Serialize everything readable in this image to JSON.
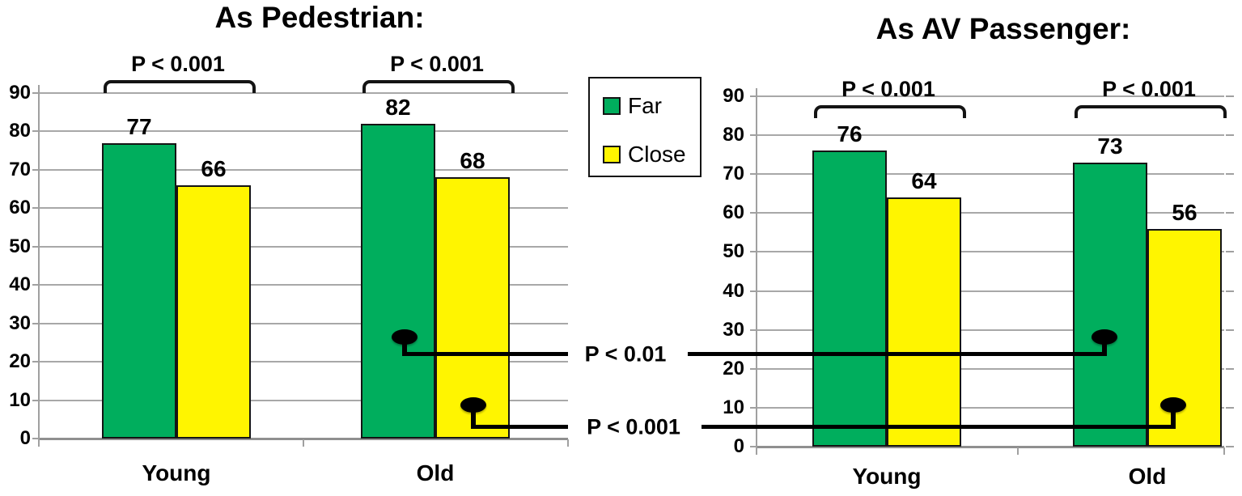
{
  "figure": {
    "background": "#ffffff",
    "description_colors": {
      "far_green": "#00AE5D",
      "close_yellow": "#FFF500",
      "gridline_gray": "#a8a8a8",
      "annotation_black": "#000000"
    }
  },
  "legend": {
    "items": [
      {
        "label": "Far",
        "color": "#00AE5D"
      },
      {
        "label": "Close",
        "color": "#FFF500"
      }
    ]
  },
  "chart_data": [
    {
      "type": "bar",
      "title": "As Pedestrian:",
      "categories": [
        "Young",
        "Old"
      ],
      "series": [
        {
          "name": "Far",
          "color": "#00AE5D",
          "values": [
            77,
            82
          ]
        },
        {
          "name": "Close",
          "color": "#FFF500",
          "values": [
            66,
            68
          ]
        }
      ],
      "ylim": [
        0,
        90
      ],
      "yticks": [
        0,
        10,
        20,
        30,
        40,
        50,
        60,
        70,
        80,
        90
      ],
      "grid": true,
      "xlabel": "",
      "ylabel": "",
      "significance_brackets": [
        {
          "category": "Young",
          "label": "P < 0.001"
        },
        {
          "category": "Old",
          "label": "P < 0.001"
        }
      ]
    },
    {
      "type": "bar",
      "title": "As AV Passenger:",
      "categories": [
        "Young",
        "Old"
      ],
      "series": [
        {
          "name": "Far",
          "color": "#00AE5D",
          "values": [
            76,
            73
          ]
        },
        {
          "name": "Close",
          "color": "#FFF500",
          "values": [
            64,
            56
          ]
        }
      ],
      "ylim": [
        0,
        90
      ],
      "yticks": [
        0,
        10,
        20,
        30,
        40,
        50,
        60,
        70,
        80,
        90
      ],
      "grid": true,
      "xlabel": "",
      "ylabel": "",
      "significance_brackets": [
        {
          "category": "Young",
          "label": "P < 0.001"
        },
        {
          "category": "Old",
          "label": "P < 0.001"
        }
      ]
    }
  ],
  "cross_chart_connectors": [
    {
      "label": "P < 0.01",
      "connects": [
        "As Pedestrian: Old Far bar",
        "As AV Passenger: Old Far bar"
      ]
    },
    {
      "label": "P < 0.001",
      "connects": [
        "As Pedestrian: Old Close bar",
        "As AV Passenger: Old Close bar"
      ]
    }
  ]
}
